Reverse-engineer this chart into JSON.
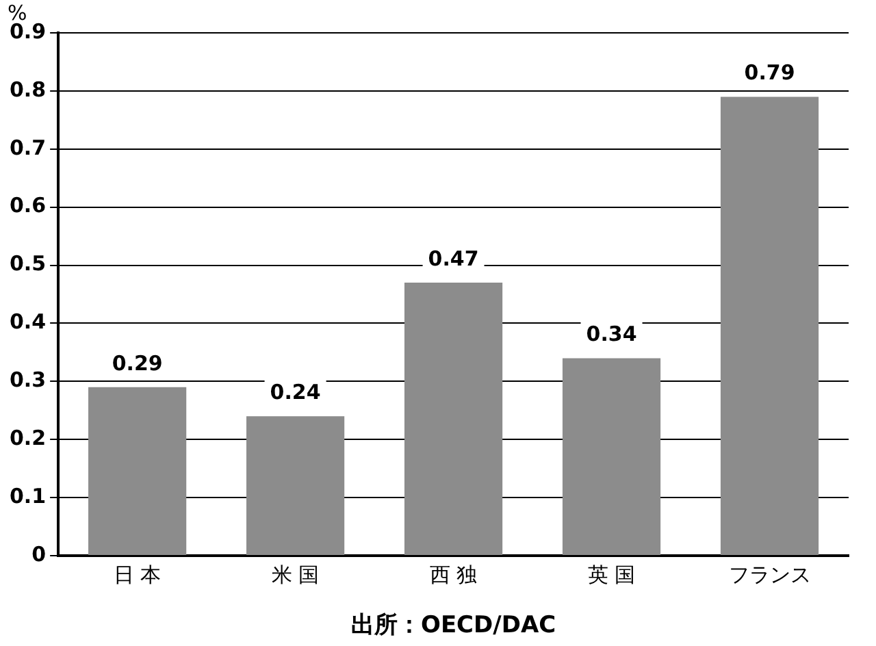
{
  "chart_data": {
    "type": "bar",
    "ylabel": "%",
    "categories": [
      "日 本",
      "米 国",
      "西 独",
      "英 国",
      "フランス"
    ],
    "values": [
      0.29,
      0.24,
      0.47,
      0.34,
      0.79
    ],
    "color": "#8c8c8c",
    "ylim": [
      0,
      0.9
    ],
    "yticks": [
      0,
      0.1,
      0.2,
      0.3,
      0.4,
      0.5,
      0.6,
      0.7,
      0.8,
      0.9
    ],
    "grid": "y",
    "legend": false,
    "data_labels": true,
    "annotations": [
      "出所：OECD/DAC"
    ]
  }
}
